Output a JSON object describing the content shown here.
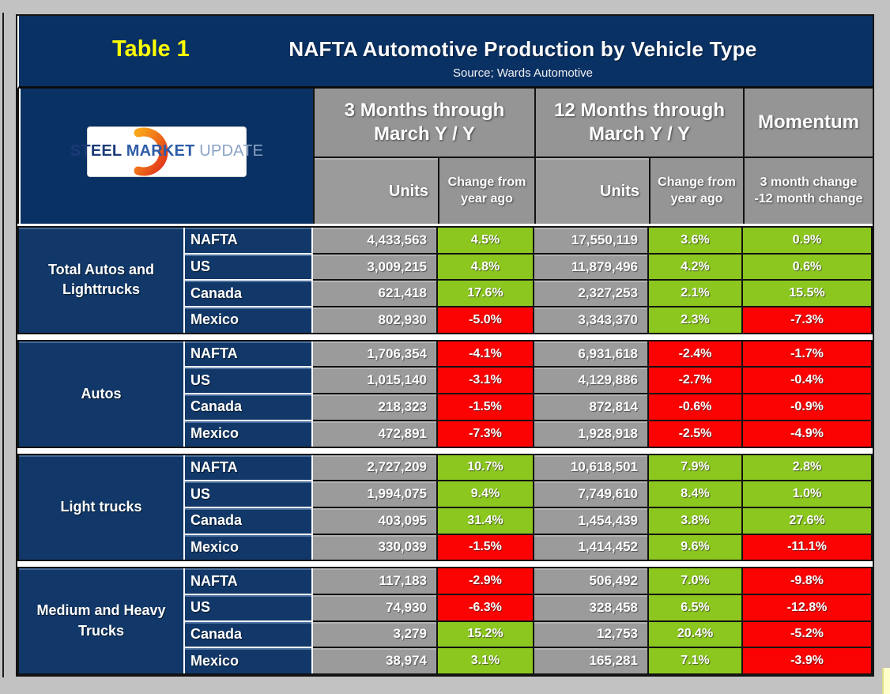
{
  "header": {
    "table_label": "Table 1",
    "title": "NAFTA Automotive Production by Vehicle Type",
    "source": "Source; Wards Automotive"
  },
  "logo": {
    "steel": "STEEL",
    "market": "MARKET",
    "update": "UPDATE"
  },
  "columns": {
    "group1": "3 Months through March Y / Y",
    "group2": "12 Months through March Y / Y",
    "group3": "Momentum",
    "sub": [
      "Units",
      "Change from year ago",
      "Units",
      "Change from year ago",
      "3 month change -12 month change"
    ]
  },
  "colors": {
    "navy": "#113868",
    "title_navy": "#0a3164",
    "header_gray": "#959595",
    "cell_gray": "#9b9b9b",
    "green": "#8cc71f",
    "red": "#fc0303",
    "label_yellow": "#ffff00",
    "page_bg": "#c2c2c2"
  },
  "chart_data": {
    "type": "table",
    "title": "NAFTA Automotive Production by Vehicle Type",
    "source": "Source; Wards Automotive",
    "column_groups": [
      "3 Months through March Y / Y",
      "12 Months through March Y / Y",
      "Momentum"
    ],
    "columns": [
      "Units (3 mo)",
      "Change from year ago (3 mo)",
      "Units (12 mo)",
      "Change from year ago (12 mo)",
      "3 month change -12 month change"
    ],
    "groups": [
      {
        "label": "Total Autos and Lighttrucks",
        "rows": [
          {
            "region": "NAFTA",
            "cells": [
              {
                "v": "4,433,563",
                "t": "units"
              },
              {
                "v": "4.5%",
                "t": "pos"
              },
              {
                "v": "17,550,119",
                "t": "units"
              },
              {
                "v": "3.6%",
                "t": "pos"
              },
              {
                "v": "0.9%",
                "t": "pos"
              }
            ]
          },
          {
            "region": "US",
            "cells": [
              {
                "v": "3,009,215",
                "t": "units"
              },
              {
                "v": "4.8%",
                "t": "pos"
              },
              {
                "v": "11,879,496",
                "t": "units"
              },
              {
                "v": "4.2%",
                "t": "pos"
              },
              {
                "v": "0.6%",
                "t": "pos"
              }
            ]
          },
          {
            "region": "Canada",
            "cells": [
              {
                "v": "621,418",
                "t": "units"
              },
              {
                "v": "17.6%",
                "t": "pos"
              },
              {
                "v": "2,327,253",
                "t": "units"
              },
              {
                "v": "2.1%",
                "t": "pos"
              },
              {
                "v": "15.5%",
                "t": "pos"
              }
            ]
          },
          {
            "region": "Mexico",
            "cells": [
              {
                "v": "802,930",
                "t": "units"
              },
              {
                "v": "-5.0%",
                "t": "neg"
              },
              {
                "v": "3,343,370",
                "t": "units"
              },
              {
                "v": "2.3%",
                "t": "pos"
              },
              {
                "v": "-7.3%",
                "t": "neg"
              }
            ]
          }
        ]
      },
      {
        "label": "Autos",
        "rows": [
          {
            "region": "NAFTA",
            "cells": [
              {
                "v": "1,706,354",
                "t": "units"
              },
              {
                "v": "-4.1%",
                "t": "neg"
              },
              {
                "v": "6,931,618",
                "t": "units"
              },
              {
                "v": "-2.4%",
                "t": "neg"
              },
              {
                "v": "-1.7%",
                "t": "neg"
              }
            ]
          },
          {
            "region": "US",
            "cells": [
              {
                "v": "1,015,140",
                "t": "units"
              },
              {
                "v": "-3.1%",
                "t": "neg"
              },
              {
                "v": "4,129,886",
                "t": "units"
              },
              {
                "v": "-2.7%",
                "t": "neg"
              },
              {
                "v": "-0.4%",
                "t": "neg"
              }
            ]
          },
          {
            "region": "Canada",
            "cells": [
              {
                "v": "218,323",
                "t": "units"
              },
              {
                "v": "-1.5%",
                "t": "neg"
              },
              {
                "v": "872,814",
                "t": "units"
              },
              {
                "v": "-0.6%",
                "t": "neg"
              },
              {
                "v": "-0.9%",
                "t": "neg"
              }
            ]
          },
          {
            "region": "Mexico",
            "cells": [
              {
                "v": "472,891",
                "t": "units"
              },
              {
                "v": "-7.3%",
                "t": "neg"
              },
              {
                "v": "1,928,918",
                "t": "units"
              },
              {
                "v": "-2.5%",
                "t": "neg"
              },
              {
                "v": "-4.9%",
                "t": "neg"
              }
            ]
          }
        ]
      },
      {
        "label": "Light trucks",
        "rows": [
          {
            "region": "NAFTA",
            "cells": [
              {
                "v": "2,727,209",
                "t": "units"
              },
              {
                "v": "10.7%",
                "t": "pos"
              },
              {
                "v": "10,618,501",
                "t": "units"
              },
              {
                "v": "7.9%",
                "t": "pos"
              },
              {
                "v": "2.8%",
                "t": "pos"
              }
            ]
          },
          {
            "region": "US",
            "cells": [
              {
                "v": "1,994,075",
                "t": "units"
              },
              {
                "v": "9.4%",
                "t": "pos"
              },
              {
                "v": "7,749,610",
                "t": "units"
              },
              {
                "v": "8.4%",
                "t": "pos"
              },
              {
                "v": "1.0%",
                "t": "pos"
              }
            ]
          },
          {
            "region": "Canada",
            "cells": [
              {
                "v": "403,095",
                "t": "units"
              },
              {
                "v": "31.4%",
                "t": "pos"
              },
              {
                "v": "1,454,439",
                "t": "units"
              },
              {
                "v": "3.8%",
                "t": "pos"
              },
              {
                "v": "27.6%",
                "t": "pos"
              }
            ]
          },
          {
            "region": "Mexico",
            "cells": [
              {
                "v": "330,039",
                "t": "units"
              },
              {
                "v": "-1.5%",
                "t": "neg"
              },
              {
                "v": "1,414,452",
                "t": "units"
              },
              {
                "v": "9.6%",
                "t": "pos"
              },
              {
                "v": "-11.1%",
                "t": "neg"
              }
            ]
          }
        ]
      },
      {
        "label": "Medium and Heavy Trucks",
        "rows": [
          {
            "region": "NAFTA",
            "cells": [
              {
                "v": "117,183",
                "t": "units"
              },
              {
                "v": "-2.9%",
                "t": "neg"
              },
              {
                "v": "506,492",
                "t": "units"
              },
              {
                "v": "7.0%",
                "t": "pos"
              },
              {
                "v": "-9.8%",
                "t": "neg"
              }
            ]
          },
          {
            "region": "US",
            "cells": [
              {
                "v": "74,930",
                "t": "units"
              },
              {
                "v": "-6.3%",
                "t": "neg"
              },
              {
                "v": "328,458",
                "t": "units"
              },
              {
                "v": "6.5%",
                "t": "pos"
              },
              {
                "v": "-12.8%",
                "t": "neg"
              }
            ]
          },
          {
            "region": "Canada",
            "cells": [
              {
                "v": "3,279",
                "t": "units"
              },
              {
                "v": "15.2%",
                "t": "pos"
              },
              {
                "v": "12,753",
                "t": "units"
              },
              {
                "v": "20.4%",
                "t": "pos"
              },
              {
                "v": "-5.2%",
                "t": "neg"
              }
            ]
          },
          {
            "region": "Mexico",
            "cells": [
              {
                "v": "38,974",
                "t": "units"
              },
              {
                "v": "3.1%",
                "t": "pos"
              },
              {
                "v": "165,281",
                "t": "units"
              },
              {
                "v": "7.1%",
                "t": "pos"
              },
              {
                "v": "-3.9%",
                "t": "neg"
              }
            ]
          }
        ]
      }
    ]
  }
}
